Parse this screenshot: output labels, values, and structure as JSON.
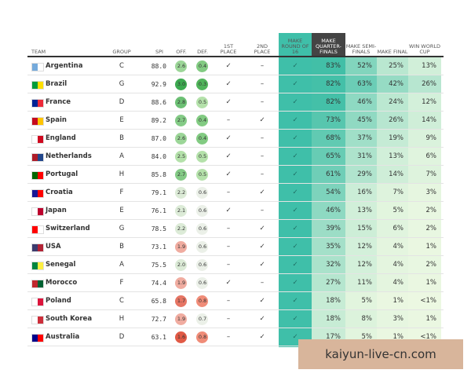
{
  "header": [
    "TEAM",
    "GROUP",
    "SPI",
    "OFF.",
    "DEF.",
    "1ST PLACE",
    "2ND PLACE",
    "MAKE ROUND OF 16",
    "MAKE QUARTER-FINALS",
    "MAKE SEMI-FINALS",
    "MAKE FINAL",
    "WIN WORLD CUP"
  ],
  "rows": [
    [
      "Argentina",
      "C",
      "88.0",
      "2.6",
      "0.4",
      "✓",
      "–",
      "✓",
      "83%",
      "52%",
      "25%",
      "13%"
    ],
    [
      "Brazil",
      "G",
      "92.9",
      "3.0",
      "0.3",
      "✓",
      "–",
      "✓",
      "82%",
      "63%",
      "42%",
      "26%"
    ],
    [
      "France",
      "D",
      "88.6",
      "2.8",
      "0.5",
      "✓",
      "–",
      "✓",
      "82%",
      "46%",
      "24%",
      "12%"
    ],
    [
      "Spain",
      "E",
      "89.2",
      "2.7",
      "0.4",
      "–",
      "✓",
      "✓",
      "73%",
      "45%",
      "26%",
      "14%"
    ],
    [
      "England",
      "B",
      "87.0",
      "2.6",
      "0.4",
      "✓",
      "–",
      "✓",
      "68%",
      "37%",
      "19%",
      "9%"
    ],
    [
      "Netherlands",
      "A",
      "84.0",
      "2.5",
      "0.5",
      "✓",
      "–",
      "✓",
      "65%",
      "31%",
      "13%",
      "6%"
    ],
    [
      "Portugal",
      "H",
      "85.8",
      "2.7",
      "0.5",
      "✓",
      "–",
      "✓",
      "61%",
      "29%",
      "14%",
      "7%"
    ],
    [
      "Croatia",
      "F",
      "79.1",
      "2.2",
      "0.6",
      "–",
      "✓",
      "✓",
      "54%",
      "16%",
      "7%",
      "3%"
    ],
    [
      "Japan",
      "E",
      "76.1",
      "2.1",
      "0.6",
      "✓",
      "–",
      "✓",
      "46%",
      "13%",
      "5%",
      "2%"
    ],
    [
      "Switzerland",
      "G",
      "78.5",
      "2.2",
      "0.6",
      "–",
      "✓",
      "✓",
      "39%",
      "15%",
      "6%",
      "2%"
    ],
    [
      "USA",
      "B",
      "73.1",
      "1.9",
      "0.6",
      "–",
      "✓",
      "✓",
      "35%",
      "12%",
      "4%",
      "1%"
    ],
    [
      "Senegal",
      "A",
      "75.5",
      "2.0",
      "0.6",
      "–",
      "✓",
      "✓",
      "32%",
      "12%",
      "4%",
      "2%"
    ],
    [
      "Morocco",
      "F",
      "74.4",
      "1.9",
      "0.6",
      "✓",
      "–",
      "✓",
      "27%",
      "11%",
      "4%",
      "1%"
    ],
    [
      "Poland",
      "C",
      "65.8",
      "1.7",
      "0.8",
      "–",
      "✓",
      "✓",
      "18%",
      "5%",
      "1%",
      "<1%"
    ],
    [
      "South Korea",
      "H",
      "72.7",
      "1.9",
      "0.7",
      "–",
      "✓",
      "✓",
      "18%",
      "8%",
      "3%",
      "1%"
    ],
    [
      "Australia",
      "D",
      "63.1",
      "1.6",
      "0.8",
      "–",
      "✓",
      "✓",
      "17%",
      "5%",
      "1%",
      "<1%"
    ]
  ],
  "watermark": "kaiyun-live-cn.com"
}
